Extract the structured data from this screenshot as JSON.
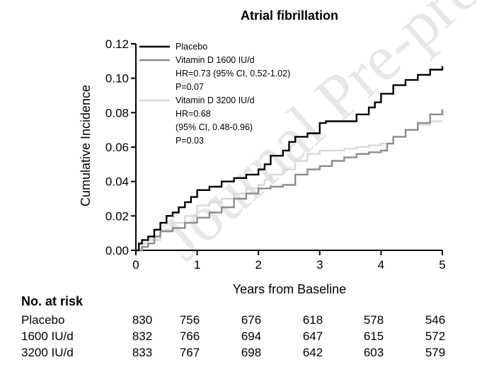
{
  "watermark": "Journal Pre-proof",
  "chart_data": {
    "type": "line",
    "step": true,
    "title": "Atrial fibrillation",
    "xlabel": "Years from Baseline",
    "ylabel": "Cumulative Incidence",
    "xlim": [
      0,
      5
    ],
    "ylim": [
      0,
      0.12
    ],
    "xticks": [
      "0",
      "1",
      "2",
      "3",
      "4",
      "5"
    ],
    "yticks": [
      "0.00",
      "0.02",
      "0.04",
      "0.06",
      "0.08",
      "0.10",
      "0.12"
    ],
    "grid": false,
    "legend_position": "top-left",
    "legend": [
      {
        "label": "Placebo",
        "notes": []
      },
      {
        "label": "Vitamin D 1600 IU/d",
        "notes": [
          "HR=0.73 (95% CI, 0.52-1.02)",
          "P=0.07"
        ]
      },
      {
        "label": "Vitamin D 3200 IU/d",
        "notes": [
          "HR=0.68",
          "(95% CI, 0.48-0.96)",
          "P=0.03"
        ]
      }
    ],
    "series": [
      {
        "name": "Placebo",
        "color": "#000000",
        "x": [
          0,
          0.05,
          0.1,
          0.2,
          0.3,
          0.4,
          0.5,
          0.6,
          0.7,
          0.8,
          0.9,
          1.0,
          1.2,
          1.4,
          1.6,
          1.8,
          2.0,
          2.1,
          2.2,
          2.4,
          2.5,
          2.6,
          2.8,
          3.0,
          3.1,
          3.2,
          3.4,
          3.6,
          3.8,
          3.9,
          4.0,
          4.2,
          4.4,
          4.6,
          4.8,
          5.0
        ],
        "y": [
          0,
          0.004,
          0.006,
          0.008,
          0.012,
          0.016,
          0.02,
          0.022,
          0.025,
          0.028,
          0.031,
          0.035,
          0.037,
          0.04,
          0.042,
          0.044,
          0.047,
          0.05,
          0.055,
          0.058,
          0.063,
          0.066,
          0.068,
          0.074,
          0.075,
          0.075,
          0.075,
          0.079,
          0.083,
          0.086,
          0.091,
          0.096,
          0.099,
          0.102,
          0.105,
          0.107
        ]
      },
      {
        "name": "Vitamin D 1600 IU/d",
        "color": "#8c8c8c",
        "x": [
          0,
          0.1,
          0.2,
          0.3,
          0.4,
          0.6,
          0.8,
          1.0,
          1.2,
          1.4,
          1.6,
          1.8,
          2.0,
          2.2,
          2.4,
          2.6,
          2.8,
          3.0,
          3.2,
          3.4,
          3.6,
          3.8,
          4.0,
          4.1,
          4.2,
          4.4,
          4.6,
          4.8,
          5.0
        ],
        "y": [
          0,
          0.002,
          0.004,
          0.008,
          0.011,
          0.013,
          0.016,
          0.019,
          0.022,
          0.025,
          0.03,
          0.033,
          0.036,
          0.037,
          0.038,
          0.044,
          0.047,
          0.049,
          0.052,
          0.054,
          0.056,
          0.057,
          0.058,
          0.062,
          0.066,
          0.07,
          0.074,
          0.079,
          0.082
        ]
      },
      {
        "name": "Vitamin D 3200 IU/d",
        "color": "#d9d9d9",
        "x": [
          0,
          0.1,
          0.2,
          0.4,
          0.6,
          0.8,
          1.0,
          1.2,
          1.4,
          1.6,
          1.8,
          2.0,
          2.1,
          2.2,
          2.4,
          2.6,
          2.8,
          3.0,
          3.2,
          3.4,
          3.6,
          3.8,
          4.0,
          4.2,
          4.4,
          4.6,
          4.8,
          5.0
        ],
        "y": [
          0,
          0.004,
          0.006,
          0.012,
          0.016,
          0.02,
          0.026,
          0.028,
          0.03,
          0.033,
          0.036,
          0.038,
          0.041,
          0.044,
          0.047,
          0.052,
          0.056,
          0.058,
          0.058,
          0.059,
          0.06,
          0.061,
          0.062,
          0.066,
          0.07,
          0.073,
          0.075,
          0.075
        ]
      }
    ]
  },
  "risk_table": {
    "title": "No. at risk",
    "rows": [
      {
        "label": "Placebo",
        "values": [
          "830",
          "756",
          "676",
          "618",
          "578",
          "546"
        ]
      },
      {
        "label": "1600 IU/d",
        "values": [
          "832",
          "766",
          "694",
          "647",
          "615",
          "572"
        ]
      },
      {
        "label": "3200 IU/d",
        "values": [
          "833",
          "767",
          "698",
          "642",
          "603",
          "579"
        ]
      }
    ]
  }
}
